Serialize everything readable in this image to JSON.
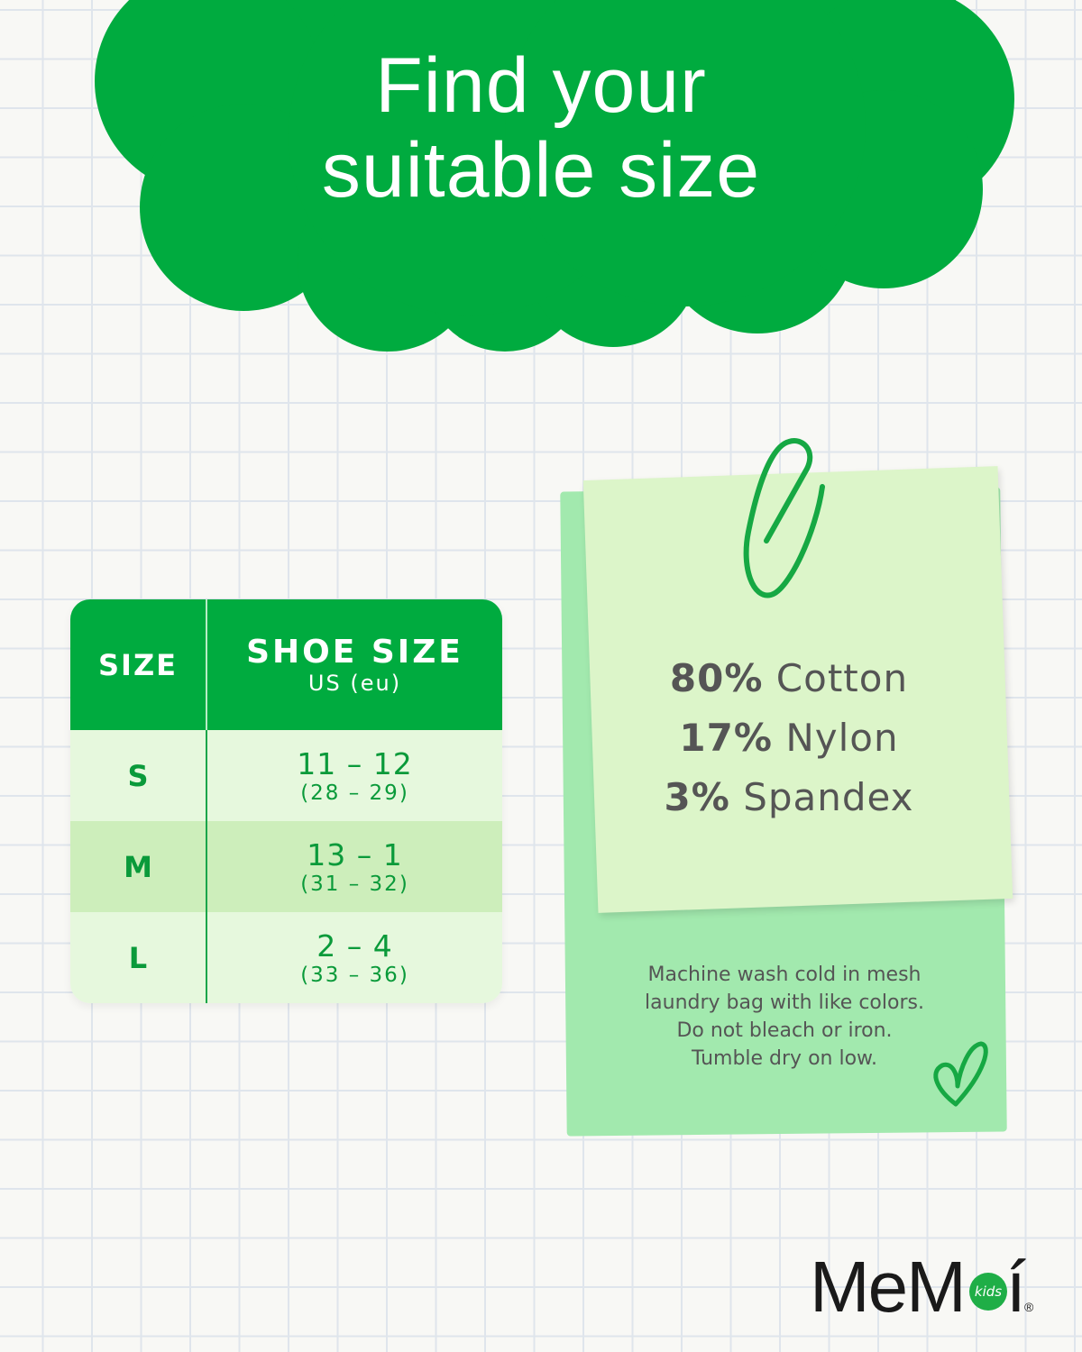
{
  "title": {
    "line1": "Find your",
    "line2": "suitable size"
  },
  "size_table": {
    "headers": {
      "size": "SIZE",
      "shoe_size": "SHOE SIZE",
      "shoe_size_sub": "US (eu)"
    },
    "rows": [
      {
        "size": "S",
        "us": "11 – 12",
        "eu": "(28 – 29)"
      },
      {
        "size": "M",
        "us": "13 – 1",
        "eu": "(31 – 32)"
      },
      {
        "size": "L",
        "us": "2 – 4",
        "eu": "(33 – 36)"
      }
    ]
  },
  "materials": [
    {
      "percent": "80%",
      "name": "Cotton"
    },
    {
      "percent": "17%",
      "name": "Nylon"
    },
    {
      "percent": "3%",
      "name": "Spandex"
    }
  ],
  "care": [
    "Machine wash cold in mesh",
    "laundry bag with like colors.",
    "Do not bleach or iron.",
    "Tumble dry on low."
  ],
  "brand": {
    "name": "MeMoí",
    "sub": "kids",
    "mark": "®"
  },
  "colors": {
    "brand_green": "#00ab3f",
    "row_light": "#e6f8dd",
    "row_mid": "#cdeebb",
    "note_back": "#a2e9ae",
    "note_front": "#dcf5c9"
  },
  "icons": [
    "paperclip-icon",
    "heart-icon"
  ]
}
